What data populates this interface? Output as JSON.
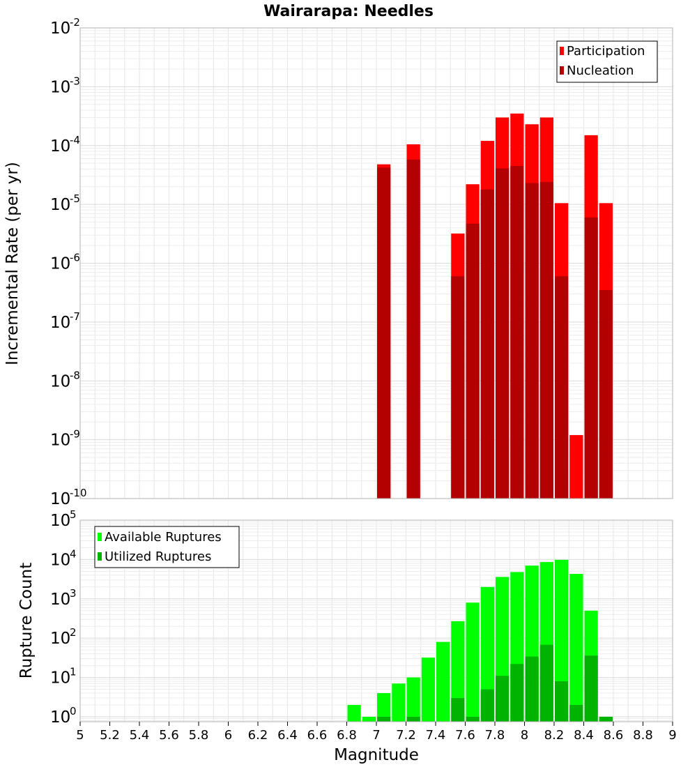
{
  "title": "Wairarapa: Needles",
  "x_axis_label": "Magnitude",
  "x_ticks": [
    "5",
    "5.2",
    "5.4",
    "5.6",
    "5.8",
    "6",
    "6.2",
    "6.4",
    "6.6",
    "6.8",
    "7",
    "7.2",
    "7.4",
    "7.6",
    "7.8",
    "8",
    "8.2",
    "8.4",
    "8.6",
    "8.8",
    "9"
  ],
  "chart_data": [
    {
      "type": "bar",
      "scale": "log",
      "ylabel": "Incremental Rate (per yr)",
      "xlabel": "Magnitude",
      "xlim": [
        5,
        9
      ],
      "ylim": [
        1e-10,
        0.01
      ],
      "bar_width": 0.1,
      "legend_position": "top-right",
      "y_tick_exponents": [
        "-2",
        "-3",
        "-4",
        "-5",
        "-6",
        "-7",
        "-8",
        "-9",
        "-10"
      ],
      "series": [
        {
          "name": "Participation",
          "color": "#ff0000",
          "x": [
            7.05,
            7.25,
            7.55,
            7.65,
            7.75,
            7.85,
            7.95,
            8.05,
            8.15,
            8.25,
            8.35,
            8.45,
            8.55
          ],
          "values": [
            4.8e-05,
            0.000105,
            3.2e-06,
            2.2e-05,
            0.00012,
            0.0003,
            0.00035,
            0.00023,
            0.0003,
            1.05e-05,
            1.2e-09,
            0.00015,
            1.05e-05
          ]
        },
        {
          "name": "Nucleation",
          "color": "#b30000",
          "x": [
            7.05,
            7.25,
            7.55,
            7.65,
            7.75,
            7.85,
            7.95,
            8.05,
            8.15,
            8.25,
            8.45,
            8.55
          ],
          "values": [
            4.2e-05,
            5.8e-05,
            6e-07,
            4.7e-06,
            1.8e-05,
            4.1e-05,
            4.5e-05,
            2.3e-05,
            2.4e-05,
            6e-07,
            6e-06,
            3.5e-07
          ]
        }
      ]
    },
    {
      "type": "bar",
      "scale": "log",
      "ylabel": "Rupture Count",
      "xlabel": "Magnitude",
      "xlim": [
        5,
        9
      ],
      "ylim": [
        0.75,
        100000.0
      ],
      "bar_width": 0.1,
      "legend_position": "top-left",
      "y_tick_exponents": [
        "5",
        "4",
        "3",
        "2",
        "1",
        "0"
      ],
      "series": [
        {
          "name": "Available Ruptures",
          "color": "#00ff00",
          "x": [
            6.85,
            6.95,
            7.05,
            7.15,
            7.25,
            7.35,
            7.45,
            7.55,
            7.65,
            7.75,
            7.85,
            7.95,
            8.05,
            8.15,
            8.25,
            8.35,
            8.45,
            8.55
          ],
          "values": [
            2,
            1,
            4,
            7,
            10,
            32,
            80,
            270,
            800,
            2000,
            3600,
            4800,
            7000,
            8600,
            9800,
            4300,
            500,
            1
          ]
        },
        {
          "name": "Utilized Ruptures",
          "color": "#00b300",
          "x": [
            7.05,
            7.25,
            7.55,
            7.65,
            7.75,
            7.85,
            7.95,
            8.05,
            8.15,
            8.25,
            8.35,
            8.45,
            8.55
          ],
          "values": [
            1,
            1,
            3,
            1,
            5,
            11,
            22,
            34,
            68,
            8,
            2,
            36,
            1
          ]
        }
      ]
    }
  ]
}
